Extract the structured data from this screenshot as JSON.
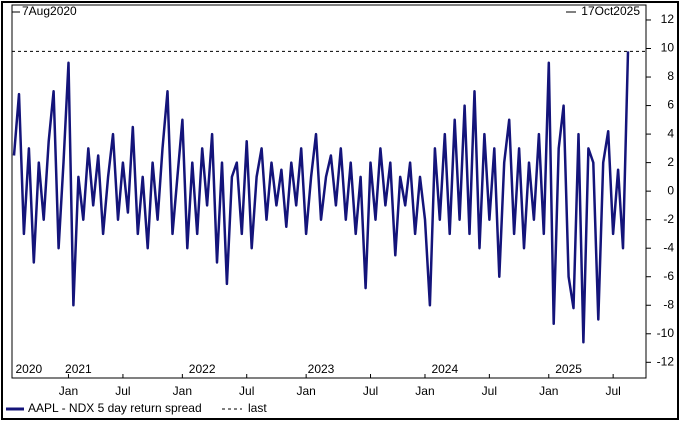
{
  "chart_data": {
    "type": "line",
    "start_label": "7Aug2020",
    "end_label": "17Oct2025",
    "series": [
      {
        "name": "AAPL - NDX 5 day return spread",
        "color": "#14147a",
        "values": [
          2.5,
          6.8,
          -3,
          3,
          -5,
          2,
          -2,
          3.5,
          7,
          -4,
          2,
          9,
          -8,
          1,
          -2,
          3,
          -1,
          2.5,
          -3,
          1,
          4,
          -2,
          2,
          -1.5,
          4.5,
          -3,
          1,
          -4,
          2,
          -2,
          3,
          7,
          -3,
          1,
          5,
          -4,
          2,
          -3,
          3,
          -1,
          4,
          -5,
          2,
          -6.5,
          1,
          2,
          -3,
          3.5,
          -4,
          1,
          3,
          -2,
          2,
          -1,
          1.5,
          -2.5,
          2,
          -1,
          3,
          -3,
          1,
          4,
          -2,
          1,
          2.5,
          -1,
          3,
          -2,
          2,
          -3,
          1,
          -6.8,
          2,
          -2,
          3,
          -1,
          2,
          -4.5,
          1,
          -1,
          2,
          -3,
          1,
          -2,
          -8,
          3,
          -2,
          4,
          -3,
          5,
          -2,
          6,
          -3,
          7,
          -4,
          4,
          -2,
          3,
          -6,
          2,
          5,
          -3,
          3,
          -4,
          2,
          -2,
          4,
          -3,
          9,
          -9.3,
          3,
          6,
          -6,
          -8.2,
          4,
          -10.6,
          3,
          2,
          -9,
          2,
          4.2,
          -3,
          1.5,
          -4,
          9.8
        ]
      }
    ],
    "last": {
      "name": "last",
      "value": 9.8
    },
    "xlim": [
      0,
      124
    ],
    "xticks": [
      {
        "value": 11,
        "label": "Jan"
      },
      {
        "value": 22,
        "label": "Jul"
      },
      {
        "value": 34,
        "label": "Jan"
      },
      {
        "value": 47,
        "label": "Jul"
      },
      {
        "value": 59,
        "label": "Jan"
      },
      {
        "value": 72,
        "label": "Jul"
      },
      {
        "value": 83,
        "label": "Jan"
      },
      {
        "value": 96,
        "label": "Jul"
      },
      {
        "value": 108,
        "label": "Jan"
      },
      {
        "value": 121,
        "label": "Jul"
      }
    ],
    "year_ticks": [
      {
        "value": 3,
        "label": "2020"
      },
      {
        "value": 13,
        "label": "2021"
      },
      {
        "value": 38,
        "label": "2022"
      },
      {
        "value": 62,
        "label": "2023"
      },
      {
        "value": 87,
        "label": "2024"
      },
      {
        "value": 112,
        "label": "2025"
      }
    ],
    "ylim": [
      -13.1,
      13.05
    ],
    "yticks": [
      12,
      10,
      8,
      6,
      4,
      2,
      0,
      -2,
      -4,
      -6,
      -8,
      -10,
      -12
    ]
  }
}
